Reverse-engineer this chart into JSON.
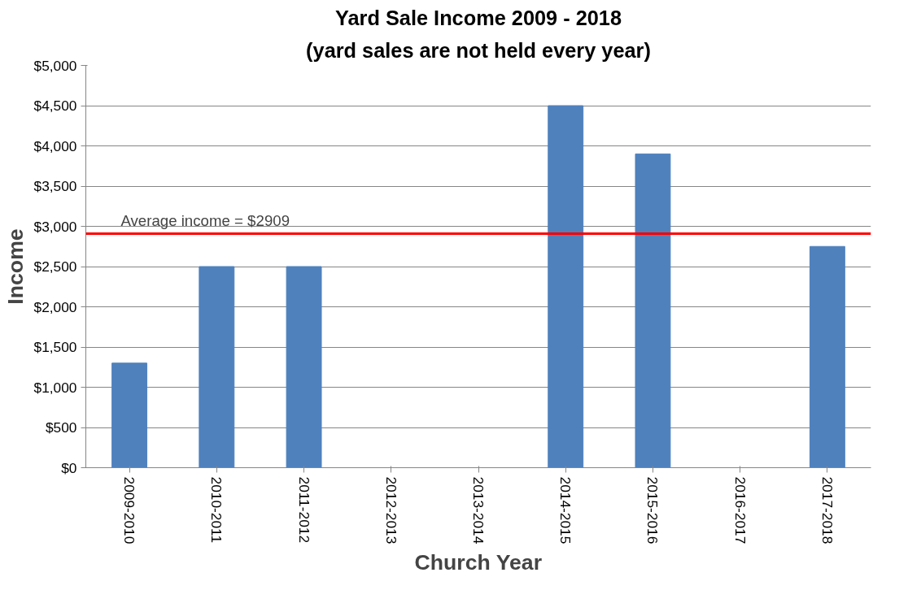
{
  "chart_data": {
    "type": "bar",
    "title": "Yard Sale Income 2009 - 2018",
    "subtitle": "(yard sales are not held every year)",
    "xlabel": "Church Year",
    "ylabel": "Income",
    "categories": [
      "2009-2010",
      "2010-2011",
      "2011-2012",
      "2012-2013",
      "2013-2014",
      "2014-2015",
      "2015-2016",
      "2016-2017",
      "2017-2018"
    ],
    "values": [
      1300,
      2500,
      2500,
      null,
      null,
      4500,
      3900,
      null,
      2750
    ],
    "color": "#4f81bd",
    "ylim": [
      0,
      5000
    ],
    "yticks": [
      {
        "value": 0,
        "label": "$0"
      },
      {
        "value": 500,
        "label": "$500"
      },
      {
        "value": 1000,
        "label": "$1,000"
      },
      {
        "value": 1500,
        "label": "$1,500"
      },
      {
        "value": 2000,
        "label": "$2,000"
      },
      {
        "value": 2500,
        "label": "$2,500"
      },
      {
        "value": 3000,
        "label": "$3,000"
      },
      {
        "value": 3500,
        "label": "$3,500"
      },
      {
        "value": 4000,
        "label": "$4,000"
      },
      {
        "value": 4500,
        "label": "$4,500"
      },
      {
        "value": 5000,
        "label": "$5,000"
      }
    ],
    "ref_lines": [
      {
        "axis": "y",
        "value": 2909,
        "label": "Average income = $2909",
        "color": "#ff0000"
      }
    ],
    "grid": "y"
  }
}
